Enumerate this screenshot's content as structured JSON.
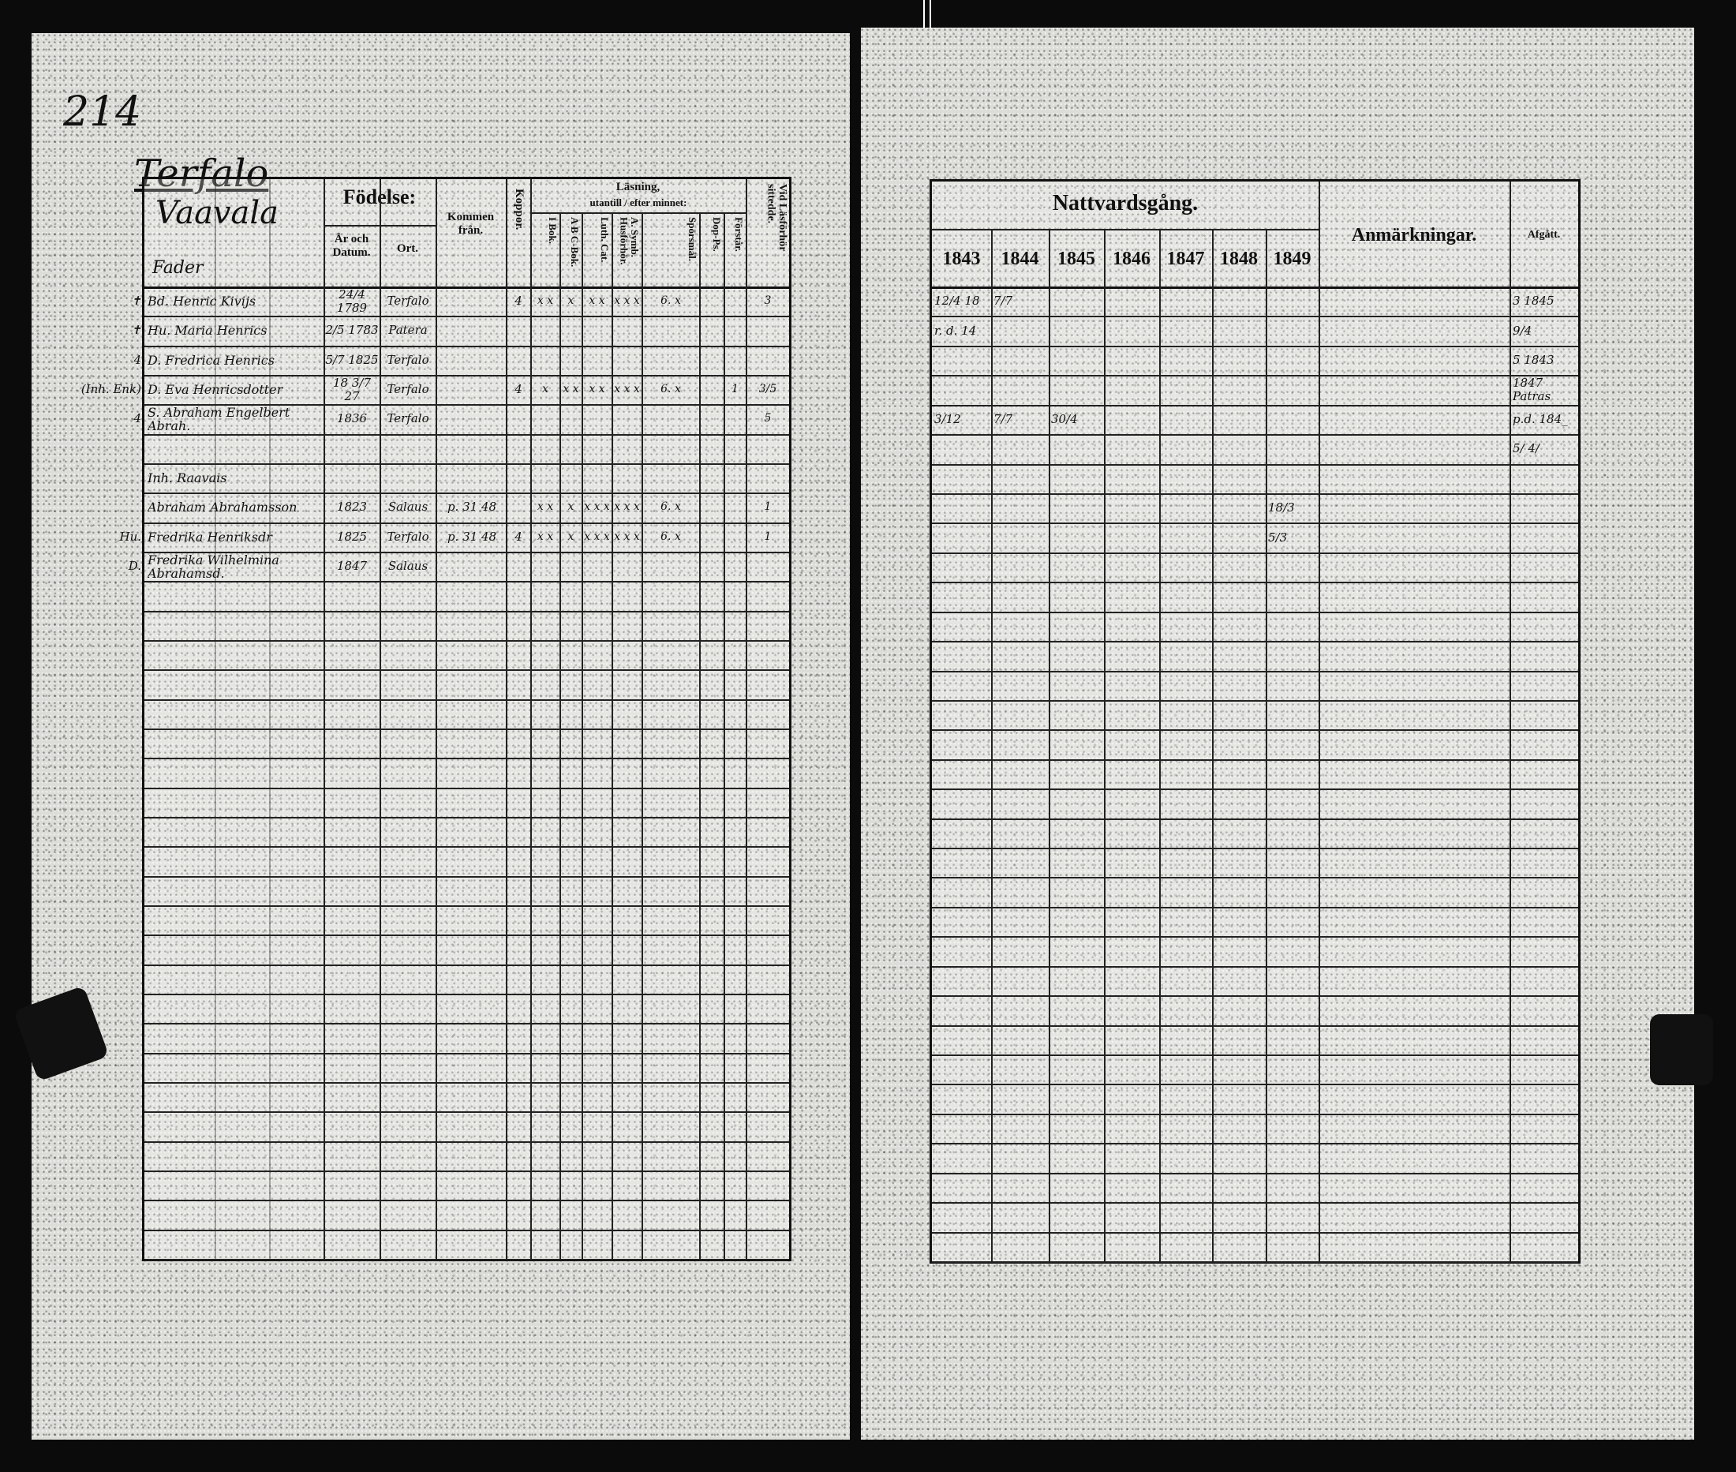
{
  "left_page": {
    "page_number": "214",
    "village": "Terfalo",
    "household": "Vaavala",
    "household_sub": "Fader",
    "header": {
      "birth": "Födelse:",
      "year_label": "År och Datum.",
      "place_label": "Ort.",
      "came_from": "Kommen från.",
      "smallpox": "Koppor.",
      "reading": "Läsning,",
      "reading_sub": "utantill / efter minnet:",
      "cols": [
        "I Bok.",
        "A B C-Bok.",
        "Luth. Cat.",
        "A. Symb. Husförhör.",
        "Spörsmål.",
        "Dop-Ps.",
        "Förstår.",
        "Vid Läsförhör sittedde."
      ]
    },
    "rows": [
      {
        "margin": "✝",
        "name": "Bd. Henric Kivijs",
        "born": "24/4 1789",
        "place": "Terfalo",
        "from": "",
        "smallpox": "4",
        "reading": [
          "x x",
          "x",
          "x x",
          "x x x",
          "6. x",
          "",
          "",
          "3"
        ]
      },
      {
        "margin": "✝",
        "name": "Hu. Maria Henrics",
        "born": "2/5 1783",
        "place": "Patera",
        "from": "",
        "smallpox": "",
        "reading": [
          "",
          "",
          "",
          "",
          "",
          "",
          "",
          ""
        ]
      },
      {
        "margin": "4",
        "name": "D. Fredrica Henrics",
        "born": "5/7 1825",
        "place": "Terfalo",
        "from": "",
        "smallpox": "",
        "reading": [
          "",
          "",
          "",
          "",
          "",
          "",
          "",
          ""
        ]
      },
      {
        "margin": "(Inh. Enk)",
        "name": "D. Eva Henricsdotter",
        "born": "18 3/7 27",
        "place": "Terfalo",
        "from": "",
        "smallpox": "4",
        "reading": [
          "x",
          "x x",
          "x x",
          "x x x",
          "6. x",
          "",
          "1",
          "3/5"
        ]
      },
      {
        "margin": "4",
        "name": "S. Abraham Engelbert Abrah.",
        "born": "1836",
        "place": "Terfalo",
        "from": "",
        "smallpox": "",
        "reading": [
          "",
          "",
          "",
          "",
          "",
          "",
          "",
          "5"
        ]
      },
      {
        "margin": "",
        "name": "",
        "born": "",
        "place": "",
        "from": "",
        "smallpox": "",
        "reading": [
          "",
          "",
          "",
          "",
          "",
          "",
          "",
          ""
        ]
      },
      {
        "margin": "",
        "name": "Inh. Raavais",
        "born": "",
        "place": "",
        "from": "",
        "smallpox": "",
        "reading": [
          "",
          "",
          "",
          "",
          "",
          "",
          "",
          ""
        ]
      },
      {
        "margin": "",
        "name": "Abraham Abrahamsson",
        "born": "1823",
        "place": "Salaus",
        "from": "p. 31   48",
        "smallpox": "",
        "reading": [
          "x x",
          "x",
          "x x x",
          "x x x",
          "6. x",
          "",
          "",
          "1"
        ]
      },
      {
        "margin": "Hu.",
        "name": "Fredrika Henriksdr",
        "born": "1825",
        "place": "Terfalo",
        "from": "p. 31   48",
        "smallpox": "4",
        "reading": [
          "x x",
          "x",
          "x x x",
          "x x x",
          "6. x",
          "",
          "",
          "1"
        ]
      },
      {
        "margin": "D.",
        "name": "Fredrika Wilhelmina Abrahamsd.",
        "born": "1847",
        "place": "Salaus",
        "from": "",
        "smallpox": "",
        "reading": [
          "",
          "",
          "",
          "",
          "",
          "",
          "",
          ""
        ]
      }
    ]
  },
  "right_page": {
    "header": {
      "communion": "Nattvardsgång.",
      "years": [
        "1843",
        "1844",
        "1845",
        "1846",
        "1847",
        "1848",
        "1849"
      ],
      "remarks": "Anmärkningar.",
      "departed": "Afgått."
    },
    "rows": [
      {
        "years": [
          "12/4 18",
          "7/7",
          "",
          "",
          "",
          "",
          ""
        ],
        "remarks": "",
        "departed": "3 1845"
      },
      {
        "years": [
          "r. d. 14",
          "",
          "",
          "",
          "",
          "",
          ""
        ],
        "remarks": "",
        "departed": "9/4"
      },
      {
        "years": [
          "",
          "",
          "",
          "",
          "",
          "",
          ""
        ],
        "remarks": "",
        "departed": "5 1843"
      },
      {
        "years": [
          "",
          "",
          "",
          "",
          "",
          "",
          ""
        ],
        "remarks": "",
        "departed": "1847 Patras"
      },
      {
        "years": [
          "3/12",
          "7/7",
          "30/4",
          "",
          "",
          "",
          ""
        ],
        "remarks": "",
        "departed": "p.d. 184_"
      },
      {
        "years": [
          "",
          "",
          "",
          "",
          "",
          "",
          ""
        ],
        "remarks": "",
        "departed": "5/ 4/"
      },
      {
        "years": [
          "",
          "",
          "",
          "",
          "",
          "",
          ""
        ],
        "remarks": "",
        "departed": ""
      },
      {
        "years": [
          "",
          "",
          "",
          "",
          "",
          "",
          "18/3"
        ],
        "remarks": "",
        "departed": ""
      },
      {
        "years": [
          "",
          "",
          "",
          "",
          "",
          "",
          "5/3"
        ],
        "remarks": "",
        "departed": ""
      }
    ]
  },
  "colors": {
    "paper": "#dcdcd8",
    "ink": "#111111",
    "scan_background": "#0b0b0b"
  }
}
